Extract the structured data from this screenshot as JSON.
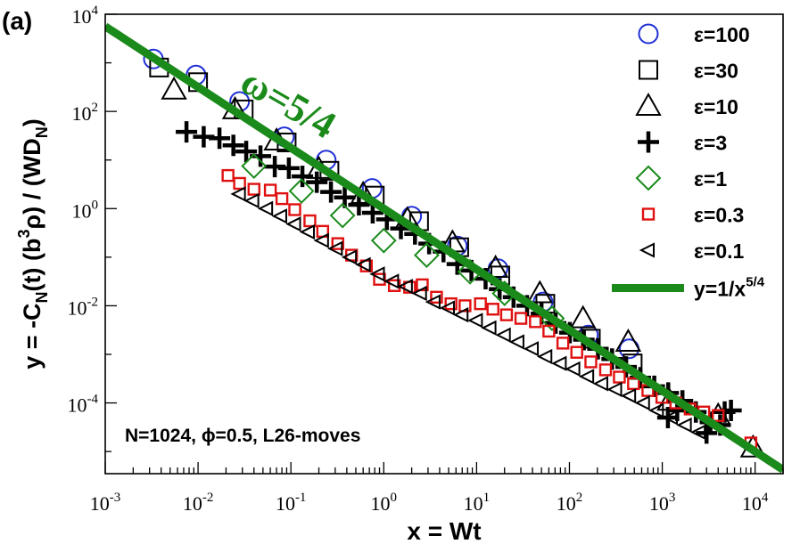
{
  "panel_label": "(a)",
  "chart_data": {
    "type": "scatter",
    "scale": "log-log",
    "xlim": [
      0.001,
      20000
    ],
    "ylim": [
      3.5e-06,
      10000
    ],
    "xlabel_main": "x = Wt",
    "ylabel": {
      "y_eq": "y = -C",
      "sub_N": "N",
      "t_part": "(t) (b",
      "sup_3": "3",
      "rho_part": "ρ) / (WD",
      "sub_N2": "N",
      "close": ")"
    },
    "x_ticks": [
      {
        "label_base": "10",
        "label_exp": "-3",
        "value": 0.001
      },
      {
        "label_base": "10",
        "label_exp": "-2",
        "value": 0.01
      },
      {
        "label_base": "10",
        "label_exp": "-1",
        "value": 0.1
      },
      {
        "label_base": "10",
        "label_exp": "0",
        "value": 1
      },
      {
        "label_base": "10",
        "label_exp": "1",
        "value": 10
      },
      {
        "label_base": "10",
        "label_exp": "2",
        "value": 100
      },
      {
        "label_base": "10",
        "label_exp": "3",
        "value": 1000
      },
      {
        "label_base": "10",
        "label_exp": "4",
        "value": 10000
      }
    ],
    "y_ticks": [
      {
        "label_base": "10",
        "label_exp": "4",
        "value": 10000
      },
      {
        "label_base": "10",
        "label_exp": "2",
        "value": 100
      },
      {
        "label_base": "10",
        "label_exp": "0",
        "value": 1
      },
      {
        "label_base": "10",
        "label_exp": "-2",
        "value": 0.01
      },
      {
        "label_base": "10",
        "label_exp": "-4",
        "value": 0.0001
      }
    ],
    "annotation": "N=1024, ϕ=0.5, L26-moves",
    "slope_label": "ω=5/4",
    "fit_line": {
      "name": "y=1/x",
      "name_exp": "5/4",
      "exponent": -1.25,
      "x_range": [
        0.001,
        20000
      ],
      "color": "#1a8a1a"
    },
    "series": [
      {
        "name": "ε=100",
        "marker": "circle",
        "color": "#1f2fd6",
        "points": [
          [
            0.0033,
            1200
          ],
          [
            0.0095,
            560
          ],
          [
            0.028,
            160
          ],
          [
            0.085,
            30
          ],
          [
            0.24,
            10
          ],
          [
            0.75,
            2.6
          ],
          [
            2.0,
            0.7
          ],
          [
            6.2,
            0.17
          ],
          [
            17,
            0.058
          ],
          [
            52,
            0.012
          ],
          [
            160,
            0.0025
          ],
          [
            440,
            0.0013
          ]
        ]
      },
      {
        "name": "ε=30",
        "marker": "square",
        "color": "#000000",
        "points": [
          [
            0.0038,
            800
          ],
          [
            0.01,
            400
          ],
          [
            0.031,
            110
          ],
          [
            0.09,
            23
          ],
          [
            0.26,
            6
          ],
          [
            0.8,
            1.85
          ],
          [
            2.4,
            0.55
          ],
          [
            6.5,
            0.16
          ],
          [
            18,
            0.042
          ],
          [
            55,
            0.011
          ],
          [
            170,
            0.0021
          ],
          [
            480,
            0.00065
          ]
        ]
      },
      {
        "name": "ε=10",
        "marker": "triangle",
        "color": "#000000",
        "points": [
          [
            0.0055,
            280
          ],
          [
            0.025,
            110
          ],
          [
            0.07,
            25
          ],
          [
            0.2,
            6.5
          ],
          [
            0.6,
            2.0
          ],
          [
            1.8,
            0.6
          ],
          [
            5.5,
            0.2
          ],
          [
            16,
            0.06
          ],
          [
            48,
            0.018
          ],
          [
            140,
            0.0055
          ],
          [
            430,
            0.0018
          ],
          [
            1200,
            0.00011
          ],
          [
            4000,
            5.5e-05
          ],
          [
            9500,
            1.2e-05
          ]
        ]
      },
      {
        "name": "ε=3",
        "marker": "plus",
        "color": "#000000",
        "points": [
          [
            0.0075,
            38
          ],
          [
            0.0115,
            30
          ],
          [
            0.017,
            28
          ],
          [
            0.024,
            20
          ],
          [
            0.033,
            15
          ],
          [
            0.047,
            12
          ],
          [
            0.067,
            7.3
          ],
          [
            0.095,
            6.8
          ],
          [
            0.133,
            4.6
          ],
          [
            0.19,
            3.5
          ],
          [
            0.27,
            2.2
          ],
          [
            0.38,
            1.7
          ],
          [
            0.54,
            1.2
          ],
          [
            0.76,
            0.82
          ],
          [
            1.08,
            0.6
          ],
          [
            1.53,
            0.39
          ],
          [
            2.17,
            0.3
          ],
          [
            3.08,
            0.19
          ],
          [
            4.4,
            0.13
          ],
          [
            6.2,
            0.072
          ],
          [
            8.8,
            0.053
          ],
          [
            12.5,
            0.036
          ],
          [
            17.7,
            0.022
          ],
          [
            25,
            0.015
          ],
          [
            35,
            0.01
          ],
          [
            50,
            0.0069
          ],
          [
            71,
            0.0044
          ],
          [
            101,
            0.0028
          ],
          [
            143,
            0.002
          ],
          [
            203,
            0.0013
          ],
          [
            288,
            0.0008
          ],
          [
            408,
            0.00055
          ],
          [
            580,
            0.00033
          ],
          [
            820,
            0.00022
          ],
          [
            1160,
            0.00016
          ],
          [
            1650,
            0.00011
          ],
          [
            1150,
            5e-05
          ],
          [
            1450,
            7e-05
          ],
          [
            2300,
            6.5e-05
          ],
          [
            3300,
            4e-05
          ],
          [
            3000,
            2.4e-05
          ],
          [
            4700,
            6.5e-05
          ],
          [
            5500,
            7e-05
          ],
          [
            4200,
            3.5e-05
          ]
        ]
      },
      {
        "name": "ε=1",
        "marker": "diamond",
        "color": "#1a8a1a",
        "points": [
          [
            0.04,
            7.5
          ],
          [
            0.13,
            2.3
          ],
          [
            0.36,
            0.72
          ],
          [
            1.0,
            0.22
          ],
          [
            2.9,
            0.11
          ],
          [
            8.5,
            0.05
          ],
          [
            20,
            0.018
          ],
          [
            65,
            0.0055
          ]
        ]
      },
      {
        "name": "ε=0.3",
        "marker": "smallsquare",
        "color": "#e01010",
        "points": [
          [
            0.021,
            4.8
          ],
          [
            0.028,
            3.3
          ],
          [
            0.04,
            2.5
          ],
          [
            0.06,
            2.4
          ],
          [
            0.08,
            1.6
          ],
          [
            0.11,
            0.95
          ],
          [
            0.16,
            0.56
          ],
          [
            0.22,
            0.34
          ],
          [
            0.32,
            0.19
          ],
          [
            0.45,
            0.11
          ],
          [
            0.65,
            0.066
          ],
          [
            0.9,
            0.035
          ],
          [
            1.3,
            0.026
          ],
          [
            1.9,
            0.024
          ],
          [
            2.6,
            0.027
          ],
          [
            3.7,
            0.015
          ],
          [
            5.3,
            0.011
          ],
          [
            7.5,
            0.01
          ],
          [
            11,
            0.011
          ],
          [
            15,
            0.0085
          ],
          [
            21,
            0.0065
          ],
          [
            30,
            0.0055
          ],
          [
            43,
            0.0047
          ],
          [
            60,
            0.003
          ],
          [
            85,
            0.0017
          ],
          [
            120,
            0.0011
          ],
          [
            170,
            0.0007
          ],
          [
            245,
            0.00048
          ],
          [
            345,
            0.00034
          ],
          [
            490,
            0.00025
          ],
          [
            700,
            0.00018
          ],
          [
            990,
            0.00013
          ],
          [
            1400,
            0.0001
          ],
          [
            2000,
            7.5e-05
          ],
          [
            2800,
            6.5e-05
          ],
          [
            4000,
            5.5e-05
          ],
          [
            9000,
            1.5e-05
          ]
        ]
      },
      {
        "name": "ε=0.1",
        "marker": "lefttriangle",
        "color": "#000000",
        "points": [
          [
            0.028,
            2.0
          ],
          [
            0.039,
            1.45
          ],
          [
            0.055,
            1.0
          ],
          [
            0.078,
            0.7
          ],
          [
            0.11,
            0.48
          ],
          [
            0.155,
            0.33
          ],
          [
            0.22,
            0.22
          ],
          [
            0.31,
            0.15
          ],
          [
            0.44,
            0.1
          ],
          [
            0.62,
            0.07
          ],
          [
            0.88,
            0.045
          ],
          [
            1.25,
            0.032
          ],
          [
            1.76,
            0.025
          ],
          [
            2.5,
            0.018
          ],
          [
            3.5,
            0.012
          ],
          [
            5.0,
            0.009
          ],
          [
            7.0,
            0.0065
          ],
          [
            10,
            0.005
          ],
          [
            14,
            0.0035
          ],
          [
            20,
            0.0025
          ],
          [
            28,
            0.0018
          ],
          [
            40,
            0.0013
          ],
          [
            56,
            0.0009
          ],
          [
            80,
            0.00065
          ],
          [
            112,
            0.0005
          ],
          [
            158,
            0.00035
          ],
          [
            224,
            0.00025
          ],
          [
            316,
            0.00019
          ],
          [
            447,
            0.00014
          ],
          [
            631,
            0.0001
          ],
          [
            890,
            7e-05
          ],
          [
            1260,
            5e-05
          ],
          [
            1780,
            3.5e-05
          ],
          [
            2510,
            2.5e-05
          ]
        ]
      }
    ]
  }
}
